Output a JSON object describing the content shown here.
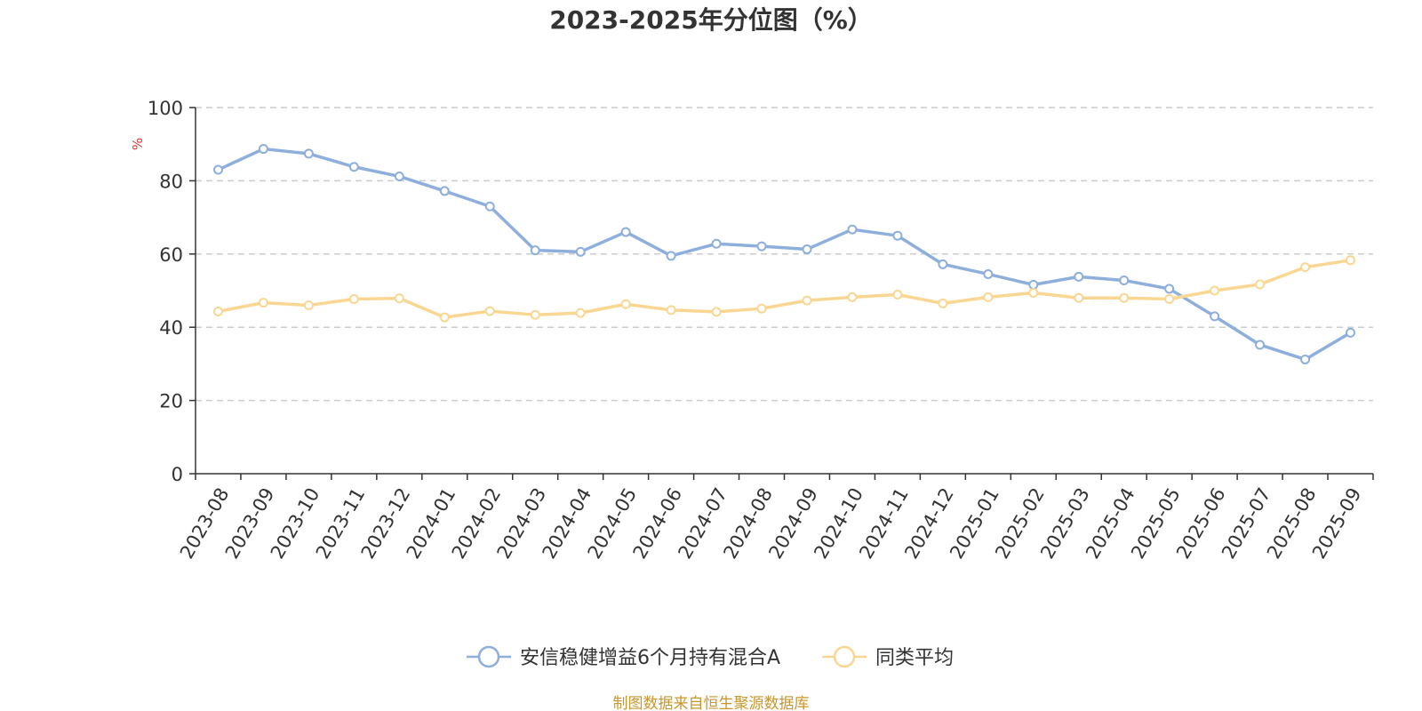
{
  "chart_data": {
    "type": "line",
    "title": "2023-2025年分位图（%）",
    "ylabel": "%",
    "xlabel": "",
    "ylim": [
      0,
      100
    ],
    "yticks": [
      0,
      20,
      40,
      60,
      80,
      100
    ],
    "grid": "horizontal-dashed",
    "legend_position": "bottom-center",
    "categories": [
      "2023-08",
      "2023-09",
      "2023-10",
      "2023-11",
      "2023-12",
      "2024-01",
      "2024-02",
      "2024-03",
      "2024-04",
      "2024-05",
      "2024-06",
      "2024-07",
      "2024-08",
      "2024-09",
      "2024-10",
      "2024-11",
      "2024-12",
      "2025-01",
      "2025-02",
      "2025-03",
      "2025-04",
      "2025-05",
      "2025-06",
      "2025-07",
      "2025-08",
      "2025-09"
    ],
    "series": [
      {
        "name": "安信稳健增益6个月持有混合A",
        "color": "#8eaedb",
        "values": [
          83.0,
          88.7,
          87.4,
          83.8,
          81.2,
          77.2,
          73.0,
          61.0,
          60.6,
          66.0,
          59.5,
          62.8,
          62.1,
          61.3,
          66.7,
          65.0,
          57.2,
          54.5,
          51.6,
          53.8,
          52.8,
          50.5,
          43.0,
          35.2,
          31.2,
          38.5
        ]
      },
      {
        "name": "同类平均",
        "color": "#f9d793",
        "values": [
          44.3,
          46.7,
          46.0,
          47.7,
          47.9,
          42.7,
          44.4,
          43.4,
          43.9,
          46.3,
          44.7,
          44.2,
          45.1,
          47.3,
          48.2,
          48.9,
          46.5,
          48.2,
          49.4,
          48.0,
          48.0,
          47.7,
          50.0,
          51.7,
          56.4,
          58.3
        ]
      }
    ]
  },
  "source_text": "制图数据来自恒生聚源数据库",
  "colors": {
    "axis": "#333333",
    "grid": "#cccccc",
    "unit_label": "#e8312a",
    "source": "#c8962d"
  }
}
